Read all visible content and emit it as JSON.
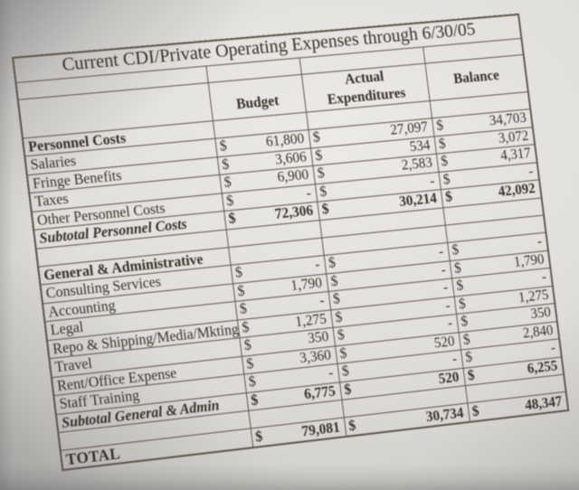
{
  "photo": {
    "paper_color": "#d8d6d3",
    "background_color": "#4a4a4c",
    "ink_color": "#332e28"
  },
  "table": {
    "title": "Current CDI/Private Operating Expenses through 6/30/05",
    "currency_symbol": "$",
    "headers": {
      "label": "",
      "budget": "Budget",
      "actual": "Actual Expenditures",
      "balance": "Balance"
    },
    "rows": [
      {
        "label": "Personnel Costs",
        "type": "section",
        "budget": null,
        "actual": null,
        "balance": null
      },
      {
        "label": "Salaries",
        "type": "item",
        "budget": "61,800",
        "actual": "27,097",
        "balance": "34,703"
      },
      {
        "label": "Fringe Benefits",
        "type": "item",
        "budget": "3,606",
        "actual": "534",
        "balance": "3,072"
      },
      {
        "label": "Taxes",
        "type": "item",
        "budget": "6,900",
        "actual": "2,583",
        "balance": "4,317"
      },
      {
        "label": "Other Personnel Costs",
        "type": "item",
        "budget": "-",
        "actual": "-",
        "balance": "-"
      },
      {
        "label": "Subtotal Personnel Costs",
        "type": "subtotal",
        "budget": "72,306",
        "actual": "30,214",
        "balance": "42,092"
      },
      {
        "label": "",
        "type": "spacer",
        "budget": null,
        "actual": null,
        "balance": null
      },
      {
        "label": "General & Administrative",
        "type": "section",
        "budget": null,
        "actual": null,
        "balance": null
      },
      {
        "label": "Consulting Services",
        "type": "item",
        "budget": "-",
        "actual": "-",
        "balance": "-"
      },
      {
        "label": "Accounting",
        "type": "item",
        "budget": "1,790",
        "actual": "-",
        "balance": "1,790"
      },
      {
        "label": "Legal",
        "type": "item",
        "budget": "-",
        "actual": "-",
        "balance": "-"
      },
      {
        "label": "Repo & Shipping/Media/Mkting",
        "type": "item",
        "budget": "1,275",
        "actual": "-",
        "balance": "1,275"
      },
      {
        "label": "Travel",
        "type": "item",
        "budget": "350",
        "actual": "-",
        "balance": "350"
      },
      {
        "label": "Rent/Office Expense",
        "type": "item",
        "budget": "3,360",
        "actual": "520",
        "balance": "2,840"
      },
      {
        "label": "Staff Training",
        "type": "item",
        "budget": "-",
        "actual": "-",
        "balance": "-"
      },
      {
        "label": "Subtotal General & Admin",
        "type": "subtotal",
        "budget": "6,775",
        "actual": "520",
        "balance": "6,255"
      },
      {
        "label": "",
        "type": "spacer",
        "budget": null,
        "actual": null,
        "balance": null
      },
      {
        "label": "TOTAL",
        "type": "total",
        "budget": "79,081",
        "actual": "30,734",
        "balance": "48,347"
      }
    ]
  }
}
